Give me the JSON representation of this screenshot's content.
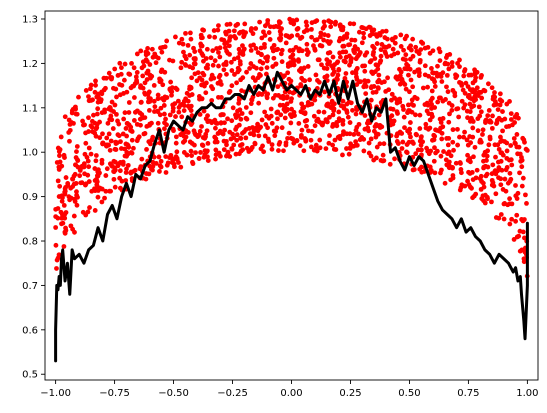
{
  "chart_data": {
    "type": "scatter",
    "title": "",
    "xlabel": "",
    "ylabel": "",
    "xlim": [
      -1.045,
      1.045
    ],
    "ylim": [
      0.487,
      1.318
    ],
    "grid": false,
    "legend": "none",
    "xticks": [
      -1.0,
      -0.75,
      -0.5,
      -0.25,
      0.0,
      0.25,
      0.5,
      0.75,
      1.0
    ],
    "xtick_labels": [
      "−1.00",
      "−0.75",
      "−0.50",
      "−0.25",
      "0.00",
      "0.25",
      "0.50",
      "0.75",
      "1.00"
    ],
    "yticks": [
      0.5,
      0.6,
      0.7,
      0.8,
      0.9,
      1.0,
      1.1,
      1.2,
      1.3
    ],
    "ytick_labels": [
      "0.5",
      "0.6",
      "0.7",
      "0.8",
      "0.9",
      "1.0",
      "1.1",
      "1.2",
      "1.3"
    ],
    "scatter": {
      "color": "#ff0000",
      "n_points": 2000,
      "model": "y = 1 + 0.3 * sqrt(1 - x^2) - u * 0.3, u uniform in [0, 1)",
      "lower_edge_at_center": 1.0,
      "upper_edge_at_center": 1.3
    },
    "line": {
      "color": "#000000",
      "x": [
        -1.0,
        -1.0,
        -0.995,
        -0.99,
        -0.985,
        -0.98,
        -0.975,
        -0.97,
        -0.96,
        -0.95,
        -0.94,
        -0.93,
        -0.92,
        -0.9,
        -0.88,
        -0.86,
        -0.84,
        -0.82,
        -0.8,
        -0.78,
        -0.76,
        -0.74,
        -0.72,
        -0.7,
        -0.68,
        -0.66,
        -0.64,
        -0.62,
        -0.6,
        -0.58,
        -0.56,
        -0.54,
        -0.52,
        -0.5,
        -0.48,
        -0.46,
        -0.44,
        -0.42,
        -0.4,
        -0.38,
        -0.36,
        -0.34,
        -0.32,
        -0.3,
        -0.28,
        -0.26,
        -0.24,
        -0.22,
        -0.2,
        -0.18,
        -0.16,
        -0.14,
        -0.12,
        -0.1,
        -0.08,
        -0.06,
        -0.04,
        -0.02,
        0.0,
        0.02,
        0.04,
        0.06,
        0.08,
        0.1,
        0.12,
        0.14,
        0.16,
        0.18,
        0.2,
        0.22,
        0.24,
        0.26,
        0.28,
        0.3,
        0.32,
        0.34,
        0.36,
        0.38,
        0.4,
        0.42,
        0.44,
        0.46,
        0.48,
        0.5,
        0.52,
        0.54,
        0.56,
        0.58,
        0.6,
        0.62,
        0.64,
        0.66,
        0.68,
        0.7,
        0.72,
        0.74,
        0.76,
        0.78,
        0.8,
        0.82,
        0.84,
        0.86,
        0.88,
        0.9,
        0.92,
        0.94,
        0.95,
        0.96,
        0.97,
        0.975,
        0.98,
        0.985,
        0.99,
        0.995,
        1.0,
        1.0
      ],
      "y": [
        0.53,
        0.6,
        0.7,
        0.69,
        0.72,
        0.7,
        0.76,
        0.78,
        0.71,
        0.75,
        0.68,
        0.78,
        0.76,
        0.77,
        0.75,
        0.78,
        0.79,
        0.83,
        0.8,
        0.86,
        0.88,
        0.85,
        0.9,
        0.93,
        0.9,
        0.95,
        0.94,
        0.97,
        0.98,
        1.02,
        1.05,
        1.0,
        1.05,
        1.07,
        1.06,
        1.05,
        1.08,
        1.07,
        1.09,
        1.1,
        1.1,
        1.11,
        1.1,
        1.1,
        1.12,
        1.12,
        1.13,
        1.13,
        1.12,
        1.15,
        1.13,
        1.15,
        1.14,
        1.17,
        1.14,
        1.18,
        1.16,
        1.14,
        1.15,
        1.14,
        1.13,
        1.15,
        1.12,
        1.14,
        1.13,
        1.16,
        1.13,
        1.16,
        1.11,
        1.16,
        1.12,
        1.16,
        1.11,
        1.09,
        1.12,
        1.07,
        1.1,
        1.09,
        1.12,
        1.0,
        1.01,
        0.98,
        0.96,
        0.99,
        0.97,
        0.99,
        0.98,
        0.95,
        0.92,
        0.89,
        0.87,
        0.86,
        0.85,
        0.83,
        0.85,
        0.82,
        0.83,
        0.81,
        0.8,
        0.78,
        0.77,
        0.75,
        0.77,
        0.76,
        0.75,
        0.73,
        0.74,
        0.71,
        0.72,
        0.68,
        0.65,
        0.62,
        0.58,
        0.64,
        0.7,
        0.84
      ]
    }
  }
}
